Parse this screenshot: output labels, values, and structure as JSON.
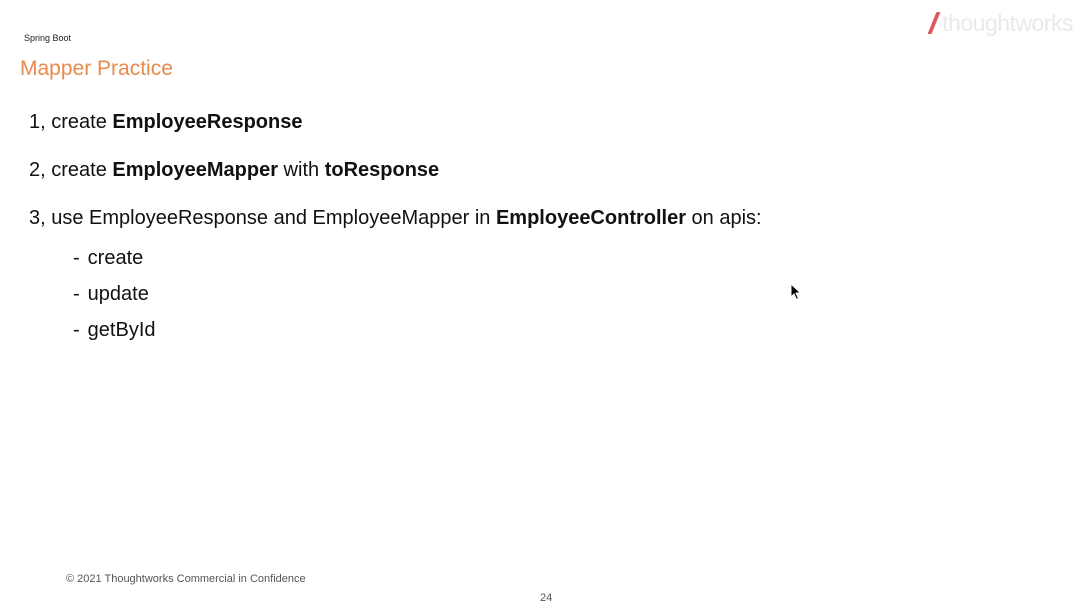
{
  "header": {
    "section_label": "Spring Boot",
    "title": "Mapper Practice",
    "logo_text": "thoughtworks",
    "logo_accent_color": "#e2555f"
  },
  "steps": [
    {
      "prefix": "1, create ",
      "bold1": "EmployeeResponse",
      "middle": "",
      "bold2": "",
      "suffix": ""
    },
    {
      "prefix": "2, create ",
      "bold1": "EmployeeMapper",
      "middle": " with ",
      "bold2": "toResponse",
      "suffix": ""
    },
    {
      "prefix": "3, use EmployeeResponse and EmployeeMapper in ",
      "bold1": "EmployeeController",
      "middle": " on apis:",
      "bold2": "",
      "suffix": ""
    }
  ],
  "apis": [
    {
      "dash": "-",
      "label": "create"
    },
    {
      "dash": "-",
      "label": "update"
    },
    {
      "dash": "-",
      "label": "getById"
    }
  ],
  "footer": {
    "copyright": "© 2021 Thoughtworks Commercial in Confidence",
    "page_number": "24"
  },
  "colors": {
    "title": "#e8894d",
    "text": "#111111"
  },
  "icons": {
    "cursor": "mouse-pointer-icon"
  }
}
